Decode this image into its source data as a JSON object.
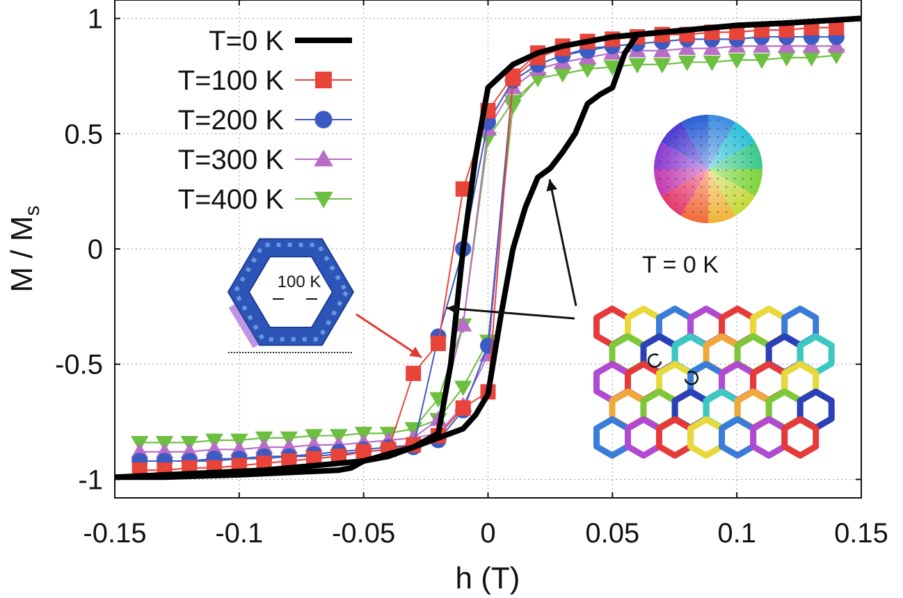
{
  "chart_data": {
    "type": "line",
    "title": "",
    "xlabel": "h (T)",
    "ylabel_main": "M / M",
    "ylabel_sub": "s",
    "xlim": [
      -0.15,
      0.15
    ],
    "ylim": [
      -1.08,
      1.08
    ],
    "grid": true,
    "legend_position": "top-left",
    "x_ticks": [
      -0.15,
      -0.1,
      -0.05,
      0,
      0.05,
      0.1,
      0.15
    ],
    "x_tick_labels": [
      "-0.15",
      "-0.1",
      "-0.05",
      "0",
      "0.05",
      "0.1",
      "0.15"
    ],
    "y_ticks": [
      -1,
      -0.5,
      0,
      0.5,
      1
    ],
    "y_tick_labels": [
      "-1",
      "-0.5",
      "0",
      "0.5",
      "1"
    ],
    "series": [
      {
        "name": "T=0 K",
        "color": "#000000",
        "marker": "none",
        "branches": [
          {
            "x": [
              -0.15,
              -0.13,
              -0.11,
              -0.09,
              -0.07,
              -0.05,
              -0.04,
              -0.03,
              -0.02,
              -0.015,
              -0.01,
              -0.005,
              0,
              0.005,
              0.01,
              0.02,
              0.03,
              0.05,
              0.06,
              0.08,
              0.1,
              0.12,
              0.15
            ],
            "y": [
              -0.99,
              -0.98,
              -0.97,
              -0.96,
              -0.94,
              -0.92,
              -0.9,
              -0.86,
              -0.8,
              -0.5,
              0,
              0.4,
              0.7,
              0.75,
              0.8,
              0.85,
              0.88,
              0.92,
              0.93,
              0.95,
              0.97,
              0.98,
              1.0
            ]
          },
          {
            "x": [
              0.15,
              0.12,
              0.1,
              0.08,
              0.06,
              0.055,
              0.05,
              0.045,
              0.04,
              0.035,
              0.03,
              0.025,
              0.02,
              0.015,
              0.01,
              0.005,
              0.0,
              -0.005,
              -0.01,
              -0.02,
              -0.03,
              -0.04,
              -0.05,
              -0.055,
              -0.06,
              -0.08,
              -0.1,
              -0.13,
              -0.15
            ],
            "y": [
              1.0,
              0.98,
              0.97,
              0.95,
              0.93,
              0.85,
              0.7,
              0.67,
              0.63,
              0.5,
              0.42,
              0.35,
              0.31,
              0.18,
              0.0,
              -0.3,
              -0.63,
              -0.72,
              -0.78,
              -0.82,
              -0.86,
              -0.89,
              -0.92,
              -0.95,
              -0.96,
              -0.97,
              -0.98,
              -0.99,
              -0.99
            ]
          }
        ]
      },
      {
        "name": "T=100 K",
        "color": "#e8443a",
        "marker": "square",
        "branches": [
          {
            "x": [
              -0.14,
              -0.13,
              -0.12,
              -0.11,
              -0.1,
              -0.09,
              -0.08,
              -0.07,
              -0.06,
              -0.05,
              -0.04,
              -0.03,
              -0.02,
              -0.01,
              0,
              0.01,
              0.02,
              0.03,
              0.04,
              0.05,
              0.06,
              0.07,
              0.08,
              0.09,
              0.1,
              0.11,
              0.12,
              0.13,
              0.14
            ],
            "y": [
              -0.96,
              -0.96,
              -0.95,
              -0.95,
              -0.94,
              -0.93,
              -0.92,
              -0.91,
              -0.9,
              -0.88,
              -0.87,
              -0.85,
              -0.81,
              -0.69,
              -0.62,
              0.74,
              0.83,
              0.87,
              0.9,
              0.91,
              0.92,
              0.93,
              0.93,
              0.94,
              0.94,
              0.95,
              0.95,
              0.96,
              0.96
            ]
          },
          {
            "x": [
              0.14,
              0.13,
              0.12,
              0.11,
              0.1,
              0.09,
              0.08,
              0.07,
              0.06,
              0.05,
              0.04,
              0.03,
              0.02,
              0.01,
              0,
              -0.01,
              -0.02,
              -0.03,
              -0.04,
              -0.05,
              -0.06,
              -0.07,
              -0.08,
              -0.09,
              -0.1,
              -0.11,
              -0.12,
              -0.13,
              -0.14
            ],
            "y": [
              0.96,
              0.96,
              0.95,
              0.95,
              0.94,
              0.94,
              0.93,
              0.93,
              0.92,
              0.91,
              0.9,
              0.88,
              0.85,
              0.75,
              0.6,
              0.26,
              -0.41,
              -0.54,
              -0.87,
              -0.88,
              -0.9,
              -0.91,
              -0.92,
              -0.93,
              -0.94,
              -0.95,
              -0.95,
              -0.96,
              -0.96
            ]
          }
        ]
      },
      {
        "name": "T=200 K",
        "color": "#3b5bc2",
        "marker": "circle",
        "branches": [
          {
            "x": [
              -0.14,
              -0.13,
              -0.12,
              -0.11,
              -0.1,
              -0.09,
              -0.08,
              -0.07,
              -0.06,
              -0.05,
              -0.04,
              -0.03,
              -0.02,
              -0.01,
              0,
              0.01,
              0.02,
              0.03,
              0.04,
              0.05,
              0.06,
              0.07,
              0.08,
              0.09,
              0.1,
              0.11,
              0.12,
              0.13,
              0.14
            ],
            "y": [
              -0.92,
              -0.92,
              -0.92,
              -0.91,
              -0.91,
              -0.9,
              -0.9,
              -0.89,
              -0.88,
              -0.87,
              -0.86,
              -0.85,
              -0.83,
              -0.7,
              -0.42,
              0.73,
              0.8,
              0.84,
              0.86,
              0.88,
              0.89,
              0.9,
              0.91,
              0.91,
              0.91,
              0.92,
              0.92,
              0.92,
              0.92
            ]
          },
          {
            "x": [
              0.14,
              0.13,
              0.12,
              0.11,
              0.1,
              0.09,
              0.08,
              0.07,
              0.06,
              0.05,
              0.04,
              0.03,
              0.02,
              0.01,
              0,
              -0.01,
              -0.02,
              -0.03,
              -0.04,
              -0.05,
              -0.06,
              -0.07,
              -0.08,
              -0.09,
              -0.1,
              -0.11,
              -0.12,
              -0.13,
              -0.14
            ],
            "y": [
              0.92,
              0.92,
              0.92,
              0.92,
              0.91,
              0.91,
              0.91,
              0.9,
              0.89,
              0.88,
              0.87,
              0.84,
              0.8,
              0.73,
              0.55,
              0.0,
              -0.38,
              -0.86,
              -0.87,
              -0.88,
              -0.89,
              -0.9,
              -0.9,
              -0.91,
              -0.91,
              -0.92,
              -0.92,
              -0.92,
              -0.92
            ]
          }
        ]
      },
      {
        "name": "T=300 K",
        "color": "#b86ec6",
        "marker": "triangle-up",
        "branches": [
          {
            "x": [
              -0.14,
              -0.13,
              -0.12,
              -0.11,
              -0.1,
              -0.09,
              -0.08,
              -0.07,
              -0.06,
              -0.05,
              -0.04,
              -0.03,
              -0.02,
              -0.01,
              0,
              0.01,
              0.02,
              0.03,
              0.04,
              0.05,
              0.06,
              0.07,
              0.08,
              0.09,
              0.1,
              0.11,
              0.12,
              0.13,
              0.14
            ],
            "y": [
              -0.88,
              -0.88,
              -0.88,
              -0.87,
              -0.87,
              -0.86,
              -0.86,
              -0.85,
              -0.85,
              -0.84,
              -0.83,
              -0.82,
              -0.8,
              -0.68,
              -0.46,
              0.7,
              0.78,
              0.81,
              0.83,
              0.85,
              0.86,
              0.86,
              0.87,
              0.87,
              0.88,
              0.88,
              0.88,
              0.88,
              0.88
            ]
          },
          {
            "x": [
              0.14,
              0.13,
              0.12,
              0.11,
              0.1,
              0.09,
              0.08,
              0.07,
              0.06,
              0.05,
              0.04,
              0.03,
              0.02,
              0.01,
              0,
              -0.01,
              -0.02,
              -0.03,
              -0.04,
              -0.05,
              -0.06,
              -0.07,
              -0.08,
              -0.09,
              -0.1,
              -0.11,
              -0.12,
              -0.13,
              -0.14
            ],
            "y": [
              0.88,
              0.88,
              0.88,
              0.88,
              0.88,
              0.87,
              0.87,
              0.86,
              0.86,
              0.85,
              0.83,
              0.81,
              0.78,
              0.7,
              0.52,
              -0.33,
              -0.74,
              -0.82,
              -0.83,
              -0.84,
              -0.85,
              -0.85,
              -0.86,
              -0.86,
              -0.87,
              -0.87,
              -0.88,
              -0.88,
              -0.88
            ]
          }
        ]
      },
      {
        "name": "T=400 K",
        "color": "#6cbf3f",
        "marker": "triangle-down",
        "branches": [
          {
            "x": [
              -0.14,
              -0.13,
              -0.12,
              -0.11,
              -0.1,
              -0.09,
              -0.08,
              -0.07,
              -0.06,
              -0.05,
              -0.04,
              -0.03,
              -0.02,
              -0.01,
              0,
              0.01,
              0.02,
              0.03,
              0.04,
              0.05,
              0.06,
              0.07,
              0.08,
              0.09,
              0.1,
              0.11,
              0.12,
              0.13,
              0.14
            ],
            "y": [
              -0.84,
              -0.84,
              -0.84,
              -0.83,
              -0.83,
              -0.82,
              -0.82,
              -0.81,
              -0.81,
              -0.8,
              -0.8,
              -0.78,
              -0.74,
              -0.6,
              -0.4,
              0.62,
              0.74,
              0.76,
              0.78,
              0.79,
              0.8,
              0.8,
              0.81,
              0.81,
              0.82,
              0.82,
              0.83,
              0.83,
              0.84
            ]
          },
          {
            "x": [
              0.14,
              0.13,
              0.12,
              0.11,
              0.1,
              0.09,
              0.08,
              0.07,
              0.06,
              0.05,
              0.04,
              0.03,
              0.02,
              0.01,
              0,
              -0.01,
              -0.02,
              -0.03,
              -0.04,
              -0.05,
              -0.06,
              -0.07,
              -0.08,
              -0.09,
              -0.1,
              -0.11,
              -0.12,
              -0.13,
              -0.14
            ],
            "y": [
              0.84,
              0.83,
              0.83,
              0.82,
              0.82,
              0.81,
              0.81,
              0.8,
              0.8,
              0.79,
              0.78,
              0.76,
              0.74,
              0.64,
              0.48,
              -0.33,
              -0.65,
              -0.78,
              -0.8,
              -0.8,
              -0.81,
              -0.81,
              -0.82,
              -0.82,
              -0.83,
              -0.83,
              -0.84,
              -0.84,
              -0.84
            ]
          }
        ]
      }
    ],
    "annotations": {
      "inset_left_label": "100 K",
      "inset_right_label": "T = 0 K"
    }
  }
}
